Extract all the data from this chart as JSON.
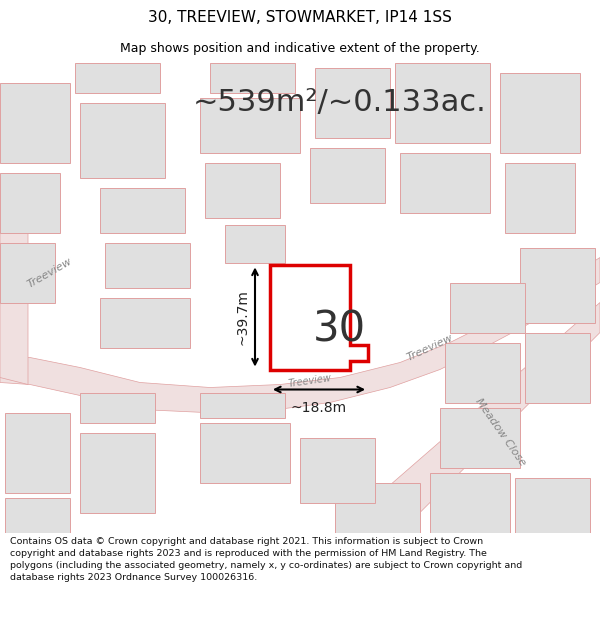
{
  "title": "30, TREEVIEW, STOWMARKET, IP14 1SS",
  "subtitle": "Map shows position and indicative extent of the property.",
  "area_text": "~539m²/~0.133ac.",
  "plot_number": "30",
  "dim_width": "~18.8m",
  "dim_height": "~39.7m",
  "footer_text": "Contains OS data © Crown copyright and database right 2021. This information is subject to Crown copyright and database rights 2023 and is reproduced with the permission of HM Land Registry. The polygons (including the associated geometry, namely x, y co-ordinates) are subject to Crown copyright and database rights 2023 Ordnance Survey 100026316.",
  "bg_white": "#ffffff",
  "map_bg": "#f5f5f5",
  "road_fill": "#f0e0e0",
  "road_line": "#e0a0a0",
  "building_fill": "#e0e0e0",
  "building_line": "#e0a0a0",
  "plot_line": "#dd0000",
  "dim_line": "#222222",
  "label_color": "#555555",
  "street_label_color": "#888888",
  "title_fs": 11,
  "subtitle_fs": 9,
  "area_fs": 22,
  "number_fs": 30,
  "dim_fs": 10,
  "footer_fs": 6.8,
  "street_fs": 8
}
